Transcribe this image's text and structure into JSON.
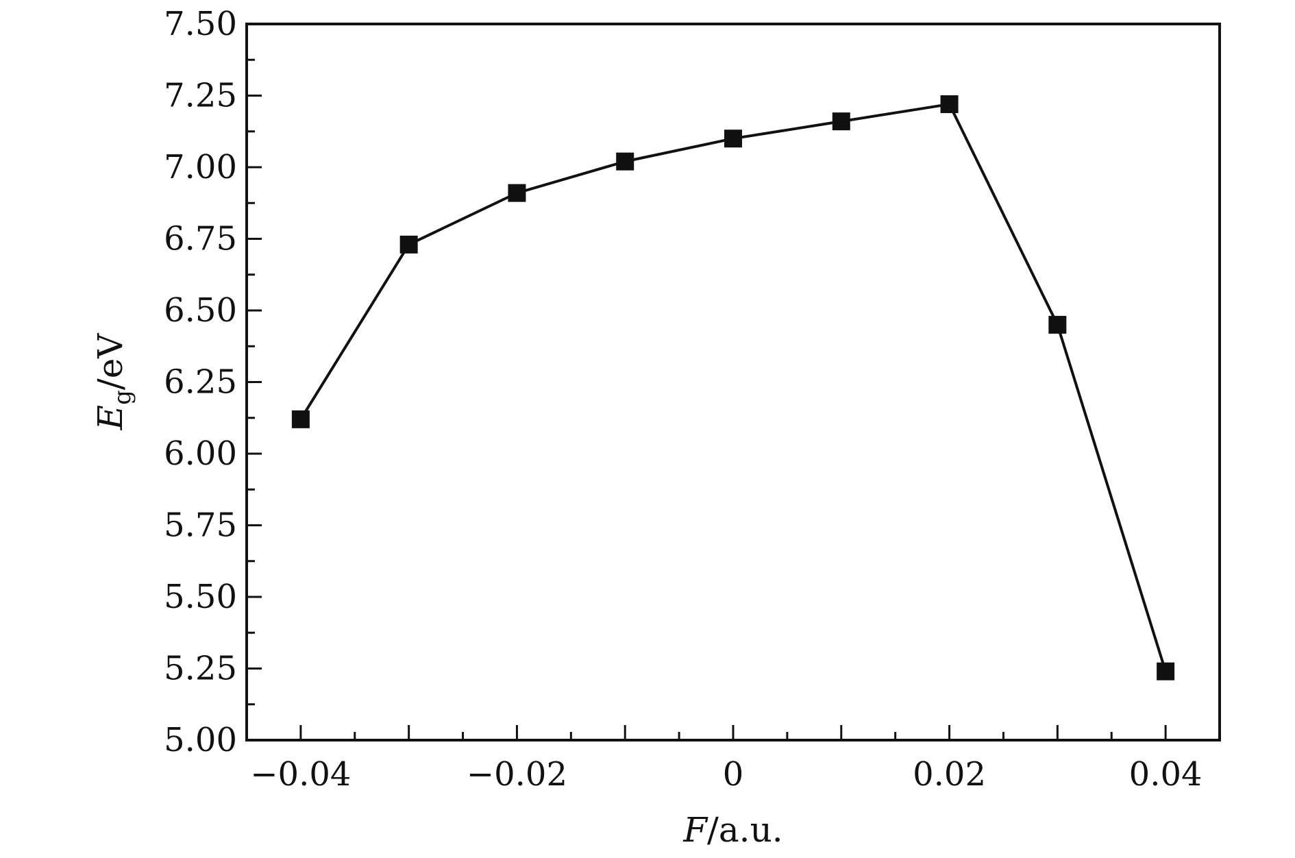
{
  "chart_data": {
    "type": "line",
    "x": [
      -0.04,
      -0.03,
      -0.02,
      -0.01,
      0,
      0.01,
      0.02,
      0.03,
      0.04
    ],
    "series": [
      {
        "values": [
          6.12,
          6.73,
          6.91,
          7.02,
          7.1,
          7.16,
          7.22,
          6.45,
          5.24
        ],
        "color": "#111111",
        "marker": "square"
      }
    ],
    "xlabel": {
      "italic": "F",
      "rest": "/a.u."
    },
    "ylabel": {
      "italic": "E",
      "sub": "g",
      "rest": "/eV"
    },
    "xlim": [
      -0.045,
      0.045
    ],
    "ylim": [
      5.0,
      7.5
    ],
    "xticks": [
      -0.04,
      -0.02,
      0,
      0.02,
      0.04
    ],
    "xtick_labels": [
      "−0.04",
      "−0.02",
      "0",
      "0.02",
      "0.04"
    ],
    "xminor_step": 0.005,
    "yticks": [
      5.0,
      5.25,
      5.5,
      5.75,
      6.0,
      6.25,
      6.5,
      6.75,
      7.0,
      7.25,
      7.5
    ],
    "ytick_labels": [
      "5.00",
      "5.25",
      "5.50",
      "5.75",
      "6.00",
      "6.25",
      "6.50",
      "6.75",
      "7.00",
      "7.25",
      "7.50"
    ],
    "yminor_step": 0.125,
    "grid": false,
    "legend": "none",
    "colors": {
      "axis": "#111111",
      "line": "#111111",
      "marker": "#111111",
      "background": "#ffffff"
    }
  }
}
